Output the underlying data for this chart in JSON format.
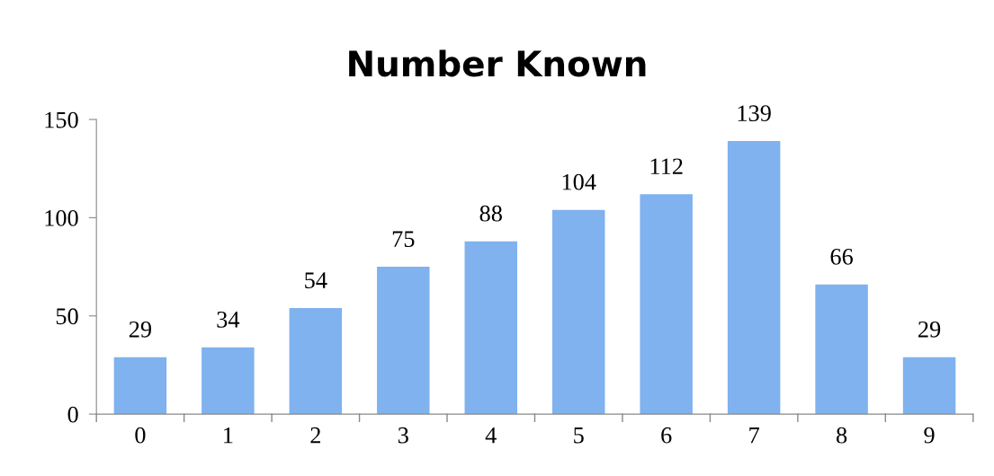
{
  "chart_data": {
    "type": "bar",
    "title": "Number Known",
    "categories": [
      "0",
      "1",
      "2",
      "3",
      "4",
      "5",
      "6",
      "7",
      "8",
      "9"
    ],
    "values": [
      29,
      34,
      54,
      75,
      88,
      104,
      112,
      139,
      66,
      29
    ],
    "color": "#7fb2ee",
    "ylim": [
      0,
      150
    ],
    "yticks": [
      0,
      50,
      100,
      150
    ],
    "data_labels": true,
    "grid": false
  }
}
